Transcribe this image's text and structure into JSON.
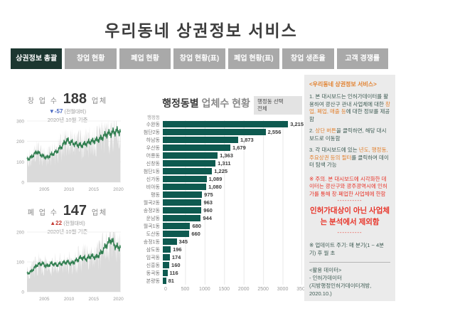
{
  "page": {
    "title": "우리동네 상권정보 서비스"
  },
  "tabs": [
    {
      "label": "상권정보 총괄",
      "active": true
    },
    {
      "label": "창업 현황",
      "active": false
    },
    {
      "label": "폐업 현황",
      "active": false
    },
    {
      "label": "창업 현황(표)",
      "active": false
    },
    {
      "label": "폐업 현황(표)",
      "active": false
    },
    {
      "label": "창업 생존율",
      "active": false
    },
    {
      "label": "고객 경쟁률",
      "active": false
    }
  ],
  "kpi_startup": {
    "label": "창 업 수",
    "value": "188",
    "unit": "업체",
    "delta": "▼-57",
    "delta_note": "(전월대비)",
    "basis": "2020년 10월 기준",
    "delta_color": "#4565c0"
  },
  "kpi_closure": {
    "label": "폐 업 수",
    "value": "147",
    "unit": "업체",
    "delta": "▲22",
    "delta_note": "(전월대비)",
    "basis": "2020년 10월 기준",
    "delta_color": "#c43a32"
  },
  "mid_chart": {
    "title_strong": "행정동별",
    "title_rest": " 업체수 현황"
  },
  "filter": {
    "label": "행정동 선택",
    "value": "전체"
  },
  "panel": {
    "heading": "<우리동네 상권정보 서비스>",
    "p1": [
      {
        "t": "1. 본 대시보드는 인허가데이터를 활용하여 광산구 관내 사업체에 대한 ",
        "h": false
      },
      {
        "t": "창업, 폐업, 매출 등",
        "h": true
      },
      {
        "t": "에 대한 정보를 제공함",
        "h": false
      }
    ],
    "p2": [
      {
        "t": "2. ",
        "h": false
      },
      {
        "t": "상단 버튼",
        "h": true
      },
      {
        "t": "을 클릭하면, 해당 대시보드로 이동함",
        "h": false
      }
    ],
    "p3": [
      {
        "t": "3. 각 대시보드에 있는 ",
        "h": false
      },
      {
        "t": "년도, 행정동, 주요상권 등의 필터",
        "h": true
      },
      {
        "t": "를 클릭하여 데이터 탐색 가능",
        "h": false
      }
    ],
    "warning": "※ 주의. 본 대시보드에 시각화한 데이터는 광산구와 광주광역시에 인허가를 통해 창·폐업한 사업체에 한함",
    "dashes": "----------",
    "exclusion_note": "인허가대상이 아닌 사업체는 분석에서 제외함",
    "update_note": "※ 업데이트 주기: 매 분기(1 ~ 4분기) 후 월 초",
    "source_title": "<활용 데이터>",
    "source_line1": "- 인허가데이터",
    "source_line2": "(지방행정인허가데이터개방, 2020.10.)",
    "accent_orange": "#e2812f",
    "accent_red": "#e8352a"
  },
  "chart_data": [
    {
      "type": "line",
      "title": "창업 수 월별 추이",
      "x_years": [
        2002,
        2003,
        2004,
        2005,
        2006,
        2007,
        2008,
        2009,
        2010,
        2011,
        2012,
        2013,
        2014,
        2015,
        2016,
        2017,
        2018,
        2019,
        2020
      ],
      "trend": [
        110,
        125,
        150,
        130,
        120,
        135,
        150,
        175,
        205,
        195,
        185,
        180,
        190,
        200,
        205,
        215,
        235,
        240,
        250
      ],
      "ylim": [
        0,
        300
      ],
      "yticks": [
        0,
        100,
        200,
        300
      ],
      "xticks": [
        2005,
        2010,
        2015,
        2020
      ],
      "line_color": "#2e7d4e",
      "area_color": "#d8d8d8",
      "seed": 3
    },
    {
      "type": "line",
      "title": "폐업 수 월별 추이",
      "x_years": [
        2002,
        2003,
        2004,
        2005,
        2006,
        2007,
        2008,
        2009,
        2010,
        2011,
        2012,
        2013,
        2014,
        2015,
        2016,
        2017,
        2018,
        2019,
        2020
      ],
      "trend": [
        60,
        70,
        90,
        95,
        85,
        95,
        90,
        95,
        100,
        95,
        105,
        115,
        110,
        120,
        115,
        130,
        155,
        175,
        150
      ],
      "ylim": [
        0,
        200
      ],
      "yticks": [
        0,
        100,
        200
      ],
      "xticks": [
        2005,
        2010,
        2015,
        2020
      ],
      "line_color": "#2e7d4e",
      "area_color": "#d8d8d8",
      "seed": 7
    },
    {
      "type": "bar",
      "title": "행정동별 업체수 현황",
      "axis_label": "행정동",
      "categories": [
        "수완동",
        "첨단2동",
        "하남동",
        "우산동",
        "어룡동",
        "신창동",
        "첨단1동",
        "신가동",
        "비아동",
        "평동",
        "월곡2동",
        "송정2동",
        "운남동",
        "월곡1동",
        "도산동",
        "송정1동",
        "삼도동",
        "임곡동",
        "신흥동",
        "동곡동",
        "본량동"
      ],
      "values": [
        3215,
        2556,
        1873,
        1679,
        1363,
        1311,
        1225,
        1089,
        1080,
        975,
        963,
        960,
        944,
        680,
        660,
        345,
        196,
        174,
        160,
        116,
        81
      ],
      "xlim": [
        0,
        3500
      ],
      "xticks": [
        0,
        500,
        1000,
        1500,
        2000,
        2500,
        3000,
        3500
      ],
      "bar_color": "#0e5a50"
    }
  ]
}
